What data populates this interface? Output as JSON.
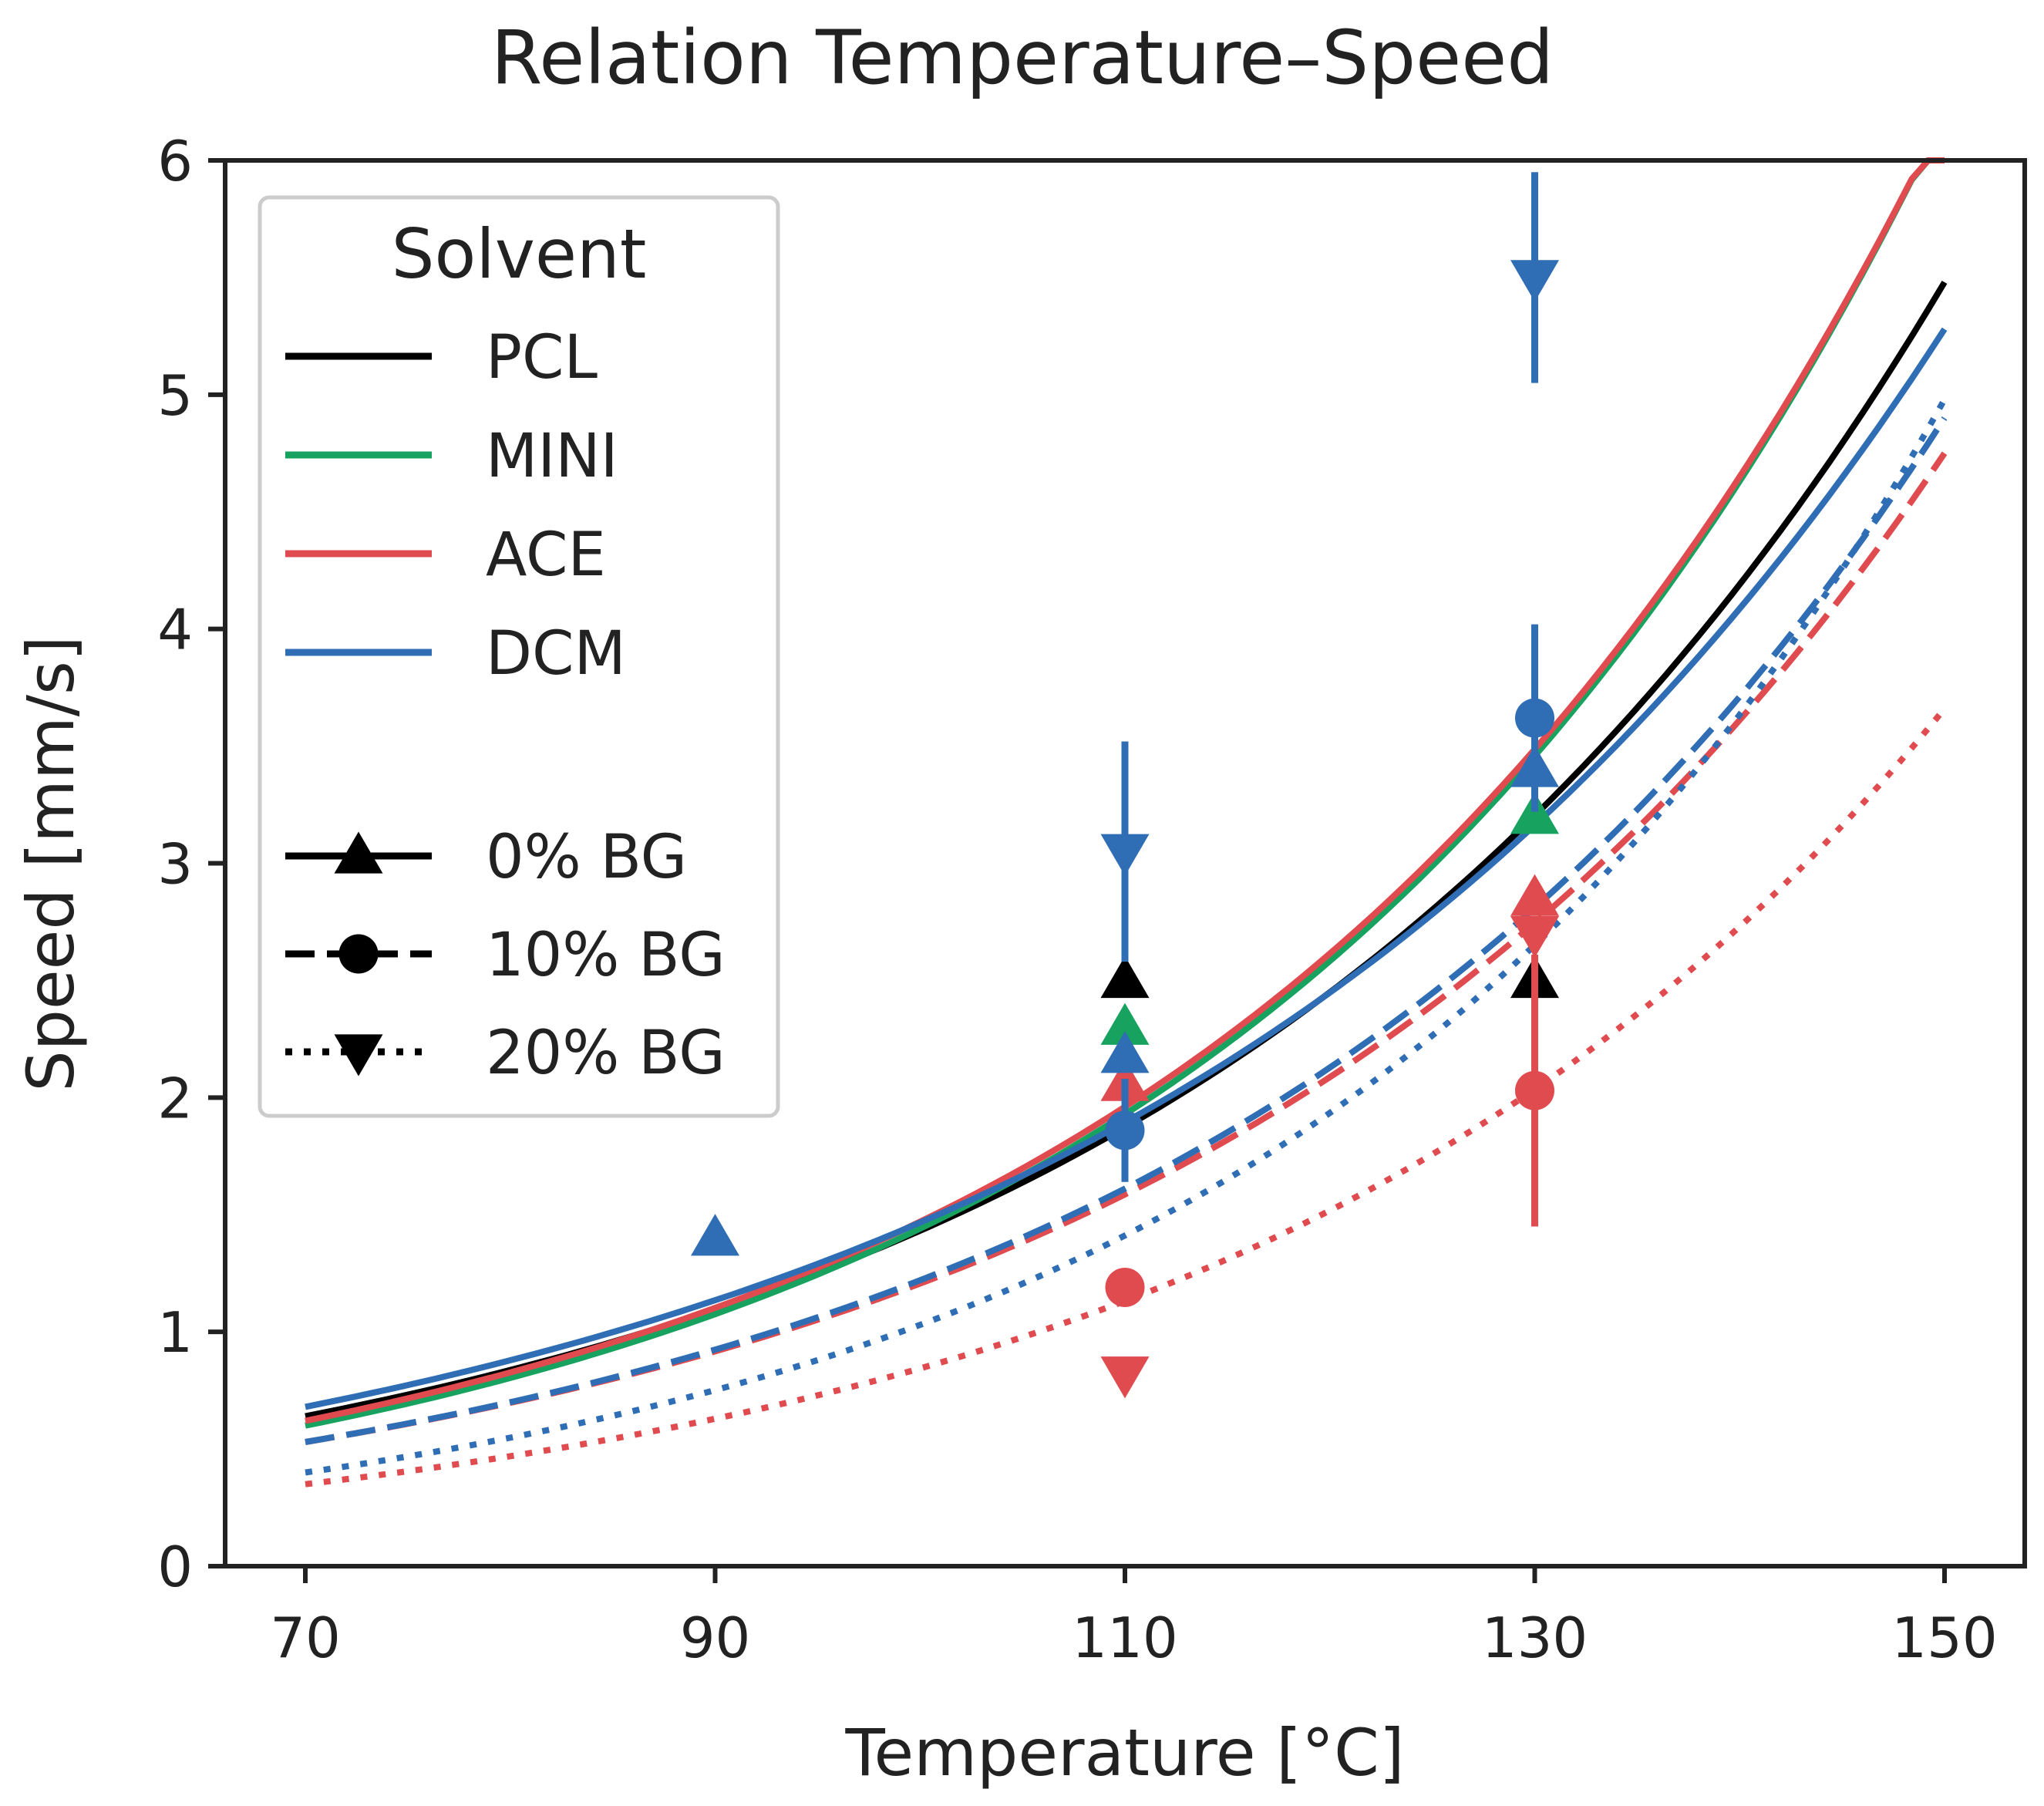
{
  "chart_data": {
    "type": "line",
    "title": "Relation Temperature–Speed",
    "xlabel": "Temperature [°C]",
    "ylabel": "Speed [mm/s]",
    "xlim": [
      66,
      150
    ],
    "ylim": [
      0,
      6
    ],
    "xticks": [
      70,
      90,
      110,
      130,
      150
    ],
    "yticks": [
      0,
      1,
      2,
      3,
      4,
      5,
      6
    ],
    "grid": false,
    "legend": {
      "placement": "top-left",
      "title": "Solvent",
      "solvents": [
        {
          "name": "PCL",
          "color": "#000000"
        },
        {
          "name": "MINI",
          "color": "#17a35f"
        },
        {
          "name": "ACE",
          "color": "#e04b50"
        },
        {
          "name": "DCM",
          "color": "#2f6eb5"
        }
      ],
      "concentrations": [
        {
          "name": "0% BG",
          "linestyle": "solid",
          "marker": "triangle-up"
        },
        {
          "name": "10% BG",
          "linestyle": "dashed",
          "marker": "circle"
        },
        {
          "name": "20% BG",
          "linestyle": "dotted",
          "marker": "triangle-down"
        }
      ]
    },
    "fit_curves": [
      {
        "solvent": "PCL",
        "bg": "0% BG",
        "color": "#000000",
        "style": "solid",
        "x": [
          70,
          150
        ],
        "y": [
          0.64,
          5.48
        ]
      },
      {
        "solvent": "MINI",
        "bg": "0% BG",
        "color": "#17a35f",
        "style": "solid",
        "x": [
          70,
          150
        ],
        "y": [
          0.6,
          6.2
        ]
      },
      {
        "solvent": "ACE",
        "bg": "0% BG",
        "color": "#e04b50",
        "style": "solid",
        "x": [
          70,
          150
        ],
        "y": [
          0.62,
          6.2
        ]
      },
      {
        "solvent": "DCM",
        "bg": "0% BG",
        "color": "#2f6eb5",
        "style": "solid",
        "x": [
          70,
          150
        ],
        "y": [
          0.68,
          5.28
        ]
      },
      {
        "solvent": "ACE",
        "bg": "10% BG",
        "color": "#e04b50",
        "style": "dashed",
        "x": [
          70,
          150
        ],
        "y": [
          0.53,
          4.75
        ]
      },
      {
        "solvent": "DCM",
        "bg": "10% BG",
        "color": "#2f6eb5",
        "style": "dashed",
        "x": [
          70,
          150
        ],
        "y": [
          0.53,
          4.9
        ]
      },
      {
        "solvent": "ACE",
        "bg": "20% BG",
        "color": "#e04b50",
        "style": "dotted",
        "x": [
          70,
          150
        ],
        "y": [
          0.35,
          3.66
        ]
      },
      {
        "solvent": "DCM",
        "bg": "20% BG",
        "color": "#2f6eb5",
        "style": "dotted",
        "x": [
          70,
          150
        ],
        "y": [
          0.4,
          4.98
        ]
      }
    ],
    "points": [
      {
        "solvent": "DCM",
        "bg": "0% BG",
        "color": "#2f6eb5",
        "marker": "triangle-up",
        "x": 90,
        "y": 1.4
      },
      {
        "solvent": "PCL",
        "bg": "0% BG",
        "color": "#000000",
        "marker": "triangle-up",
        "x": 110,
        "y": 2.5
      },
      {
        "solvent": "MINI",
        "bg": "0% BG",
        "color": "#17a35f",
        "marker": "triangle-up",
        "x": 110,
        "y": 2.3
      },
      {
        "solvent": "ACE",
        "bg": "0% BG",
        "color": "#e04b50",
        "marker": "triangle-up",
        "x": 110,
        "y": 2.06
      },
      {
        "solvent": "DCM",
        "bg": "0% BG",
        "color": "#2f6eb5",
        "marker": "triangle-up",
        "x": 110,
        "y": 2.18
      },
      {
        "solvent": "DCM",
        "bg": "10% BG",
        "color": "#2f6eb5",
        "marker": "circle",
        "x": 110,
        "y": 1.86,
        "err": 0.22
      },
      {
        "solvent": "ACE",
        "bg": "10% BG",
        "color": "#e04b50",
        "marker": "circle",
        "x": 110,
        "y": 1.19
      },
      {
        "solvent": "DCM",
        "bg": "20% BG",
        "color": "#2f6eb5",
        "marker": "triangle-down",
        "x": 110,
        "y": 3.05,
        "err": 0.47
      },
      {
        "solvent": "ACE",
        "bg": "20% BG",
        "color": "#e04b50",
        "marker": "triangle-down",
        "x": 110,
        "y": 0.82
      },
      {
        "solvent": "PCL",
        "bg": "0% BG",
        "color": "#000000",
        "marker": "triangle-up",
        "x": 130,
        "y": 2.5
      },
      {
        "solvent": "MINI",
        "bg": "0% BG",
        "color": "#17a35f",
        "marker": "triangle-up",
        "x": 130,
        "y": 3.2
      },
      {
        "solvent": "ACE",
        "bg": "0% BG",
        "color": "#e04b50",
        "marker": "triangle-up",
        "x": 130,
        "y": 2.85
      },
      {
        "solvent": "DCM",
        "bg": "0% BG",
        "color": "#2f6eb5",
        "marker": "triangle-up",
        "x": 130,
        "y": 3.4
      },
      {
        "solvent": "DCM",
        "bg": "10% BG",
        "color": "#2f6eb5",
        "marker": "circle",
        "x": 130,
        "y": 3.62,
        "err": 0.4
      },
      {
        "solvent": "ACE",
        "bg": "10% BG",
        "color": "#e04b50",
        "marker": "circle",
        "x": 130,
        "y": 2.03,
        "err": 0.58
      },
      {
        "solvent": "DCM",
        "bg": "20% BG",
        "color": "#2f6eb5",
        "marker": "triangle-down",
        "x": 130,
        "y": 5.5,
        "err": 0.45
      },
      {
        "solvent": "ACE",
        "bg": "20% BG",
        "color": "#e04b50",
        "marker": "triangle-down",
        "x": 130,
        "y": 2.7
      }
    ]
  }
}
